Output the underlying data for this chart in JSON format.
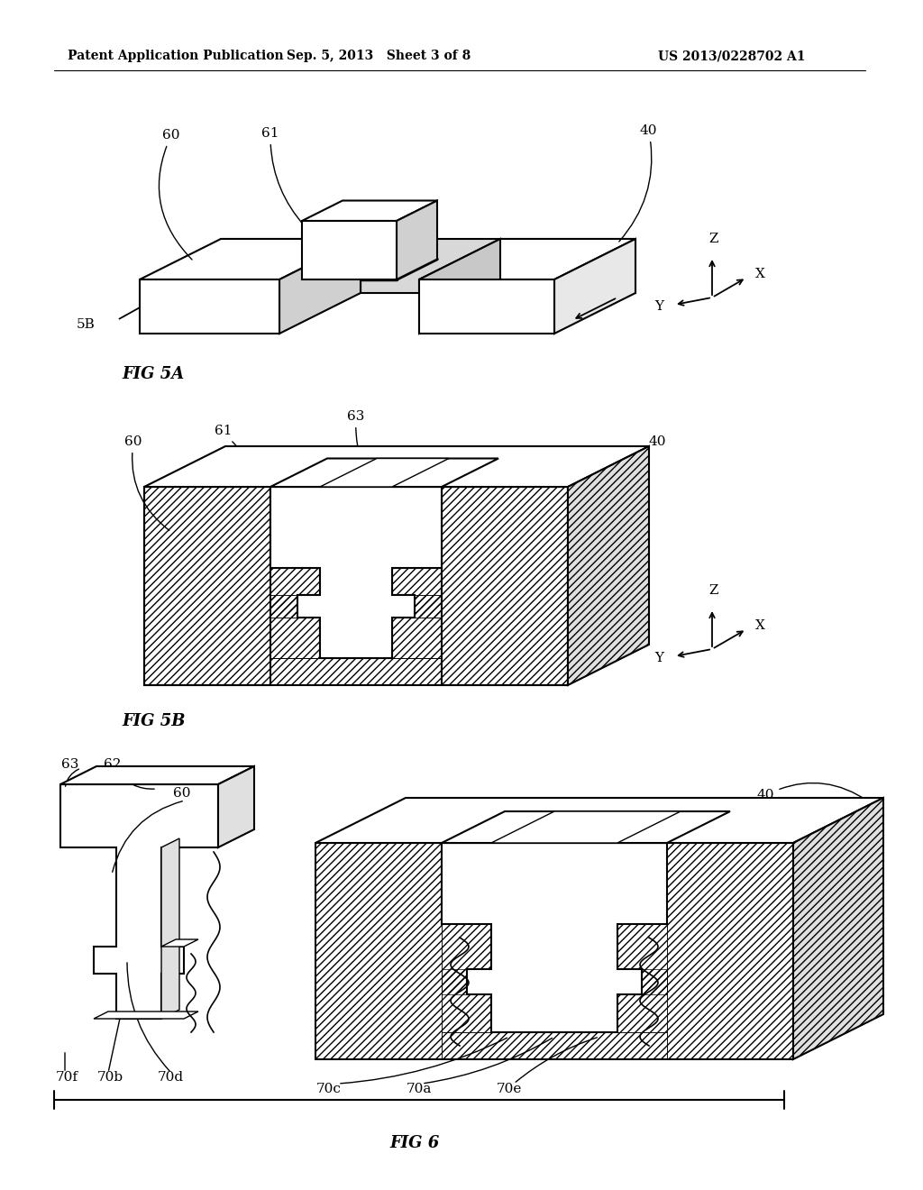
{
  "background_color": "#ffffff",
  "header_left": "Patent Application Publication",
  "header_mid": "Sep. 5, 2013   Sheet 3 of 8",
  "header_right": "US 2013/0228702 A1",
  "fig5a_label": "FIG 5A",
  "fig5b_label": "FIG 5B",
  "fig6_label": "FIG 6",
  "line_color": "#000000",
  "label_fontsize": 11,
  "header_fontsize": 10,
  "figlabel_fontsize": 13
}
